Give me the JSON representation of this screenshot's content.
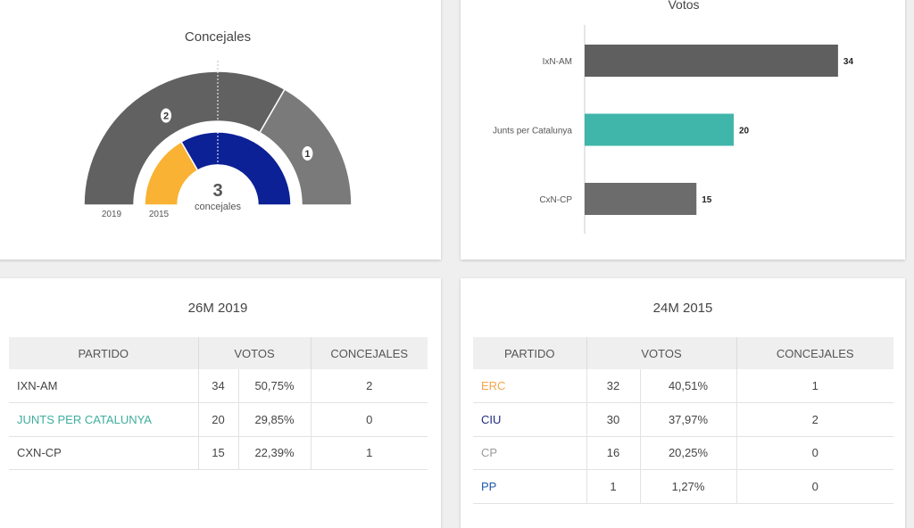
{
  "concejales_chart": {
    "title": "Concejales",
    "total": "3",
    "total_label": "concejales",
    "ring_labels": [
      "2019",
      "2015"
    ],
    "outer": [
      {
        "party": "IxN-AM",
        "seats": 2,
        "color": "#616161"
      },
      {
        "party": "CxN-CP",
        "seats": 1,
        "color": "#7a7a7a"
      }
    ],
    "inner": [
      {
        "party": "ERC",
        "seats": 1,
        "color": "#f9b233"
      },
      {
        "party": "CIU",
        "seats": 2,
        "color": "#0c2196"
      }
    ]
  },
  "chart_data": {
    "type": "bar",
    "title": "Votos",
    "categories": [
      "IxN-AM",
      "Junts per Catalunya",
      "CxN-CP"
    ],
    "values": [
      34,
      20,
      15
    ],
    "colors": [
      "#5f5f5f",
      "#40b5aa",
      "#6c6c6c"
    ],
    "xlim": [
      0,
      38
    ],
    "grid": false
  },
  "t2019": {
    "title": "26M 2019",
    "headers": [
      "PARTIDO",
      "VOTOS",
      "CONCEJALES"
    ],
    "rows": [
      {
        "party": "IXN-AM",
        "color": "#444444",
        "votes": "34",
        "pct": "50,75%",
        "seats": "2"
      },
      {
        "party": "JUNTS PER CATALUNYA",
        "color": "#3fae9e",
        "votes": "20",
        "pct": "29,85%",
        "seats": "0"
      },
      {
        "party": "CXN-CP",
        "color": "#444444",
        "votes": "15",
        "pct": "22,39%",
        "seats": "1"
      }
    ]
  },
  "t2015": {
    "title": "24M 2015",
    "headers": [
      "PARTIDO",
      "VOTOS",
      "CONCEJALES"
    ],
    "rows": [
      {
        "party": "ERC",
        "color": "#f5a54a",
        "votes": "32",
        "pct": "40,51%",
        "seats": "1"
      },
      {
        "party": "CIU",
        "color": "#1e2b80",
        "votes": "30",
        "pct": "37,97%",
        "seats": "2"
      },
      {
        "party": "CP",
        "color": "#999999",
        "votes": "16",
        "pct": "20,25%",
        "seats": "0"
      },
      {
        "party": "PP",
        "color": "#1f58a8",
        "votes": "1",
        "pct": "1,27%",
        "seats": "0"
      }
    ]
  }
}
